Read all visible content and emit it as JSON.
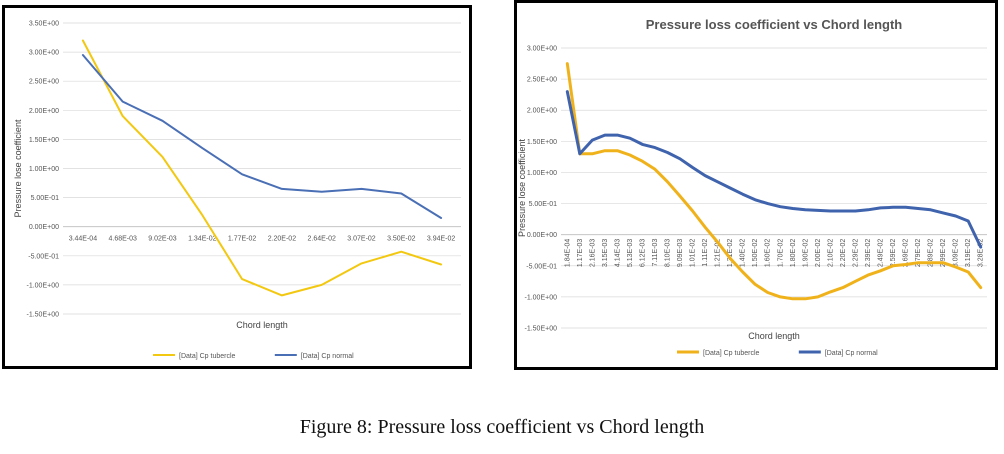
{
  "caption": "Figure 8: Pressure loss coefficient vs Chord length",
  "chart_data": [
    {
      "type": "line",
      "title": "",
      "xlabel": "Chord length",
      "ylabel": "Pressure lose coefficient",
      "ylim": [
        -1.5,
        3.5
      ],
      "y_ticks": [
        "3.50E+00",
        "3.00E+00",
        "2.50E+00",
        "2.00E+00",
        "1.50E+00",
        "1.00E+00",
        "5.00E-01",
        "0.00E+00",
        "-5.00E-01",
        "-1.00E+00",
        "-1.50E+00"
      ],
      "y_tick_values": [
        3.5,
        3.0,
        2.5,
        2.0,
        1.5,
        1.0,
        0.5,
        0.0,
        -0.5,
        -1.0,
        -1.5
      ],
      "categories": [
        "3.44E-04",
        "4.68E-03",
        "9.02E-03",
        "1.34E-02",
        "1.77E-02",
        "2.20E-02",
        "2.64E-02",
        "3.07E-02",
        "3.50E-02",
        "3.94E-02"
      ],
      "grid": true,
      "legend_position": "bottom",
      "series": [
        {
          "name": "[Data]  Cp tubercle",
          "color": "#f2c811",
          "values": [
            3.2,
            1.9,
            1.2,
            0.2,
            -0.9,
            -1.18,
            -1.0,
            -0.63,
            -0.43,
            -0.65
          ]
        },
        {
          "name": "[Data]  Cp normal",
          "color": "#4a6fb5",
          "values": [
            2.95,
            2.15,
            1.82,
            1.35,
            0.9,
            0.65,
            0.6,
            0.65,
            0.57,
            0.15
          ]
        }
      ]
    },
    {
      "type": "line",
      "title": "Pressure loss coefficient vs Chord length",
      "xlabel": "Chord length",
      "ylabel": "Pressure lose coefficient",
      "ylim": [
        -1.5,
        3.0
      ],
      "y_ticks": [
        "3.00E+00",
        "2.50E+00",
        "2.00E+00",
        "1.50E+00",
        "1.00E+00",
        "5.00E-01",
        "0.00E+00",
        "-5.00E-01",
        "-1.00E+00",
        "-1.50E+00"
      ],
      "y_tick_values": [
        3.0,
        2.5,
        2.0,
        1.5,
        1.0,
        0.5,
        0.0,
        -0.5,
        -1.0,
        -1.5
      ],
      "categories": [
        "1.84E-04",
        "1.17E-03",
        "2.16E-03",
        "3.15E-03",
        "4.14E-03",
        "5.13E-03",
        "6.12E-03",
        "7.11E-03",
        "8.10E-03",
        "9.09E-03",
        "1.01E-02",
        "1.11E-02",
        "1.21E-02",
        "1.31E-02",
        "1.40E-02",
        "1.50E-02",
        "1.60E-02",
        "1.70E-02",
        "1.80E-02",
        "1.90E-02",
        "2.00E-02",
        "2.10E-02",
        "2.20E-02",
        "2.29E-02",
        "2.39E-02",
        "2.49E-02",
        "2.59E-02",
        "2.69E-02",
        "2.79E-02",
        "2.89E-02",
        "2.99E-02",
        "3.09E-02",
        "3.19E-02",
        "3.28E-02"
      ],
      "grid": true,
      "legend_position": "bottom",
      "series": [
        {
          "name": "[Data]  Cp tubercle",
          "color": "#f0b21a",
          "values": [
            2.75,
            1.3,
            1.3,
            1.35,
            1.35,
            1.28,
            1.18,
            1.05,
            0.85,
            0.62,
            0.38,
            0.12,
            -0.12,
            -0.38,
            -0.6,
            -0.8,
            -0.93,
            -1.0,
            -1.03,
            -1.03,
            -1.0,
            -0.92,
            -0.85,
            -0.75,
            -0.65,
            -0.58,
            -0.5,
            -0.48,
            -0.45,
            -0.45,
            -0.45,
            -0.52,
            -0.6,
            -0.85
          ]
        },
        {
          "name": "[Data]  Cp normal",
          "color": "#3f63ad",
          "values": [
            2.3,
            1.3,
            1.52,
            1.6,
            1.6,
            1.55,
            1.45,
            1.4,
            1.32,
            1.22,
            1.08,
            0.95,
            0.85,
            0.75,
            0.65,
            0.56,
            0.5,
            0.45,
            0.42,
            0.4,
            0.39,
            0.38,
            0.38,
            0.38,
            0.4,
            0.43,
            0.44,
            0.44,
            0.42,
            0.4,
            0.35,
            0.3,
            0.22,
            -0.2
          ]
        }
      ]
    }
  ]
}
